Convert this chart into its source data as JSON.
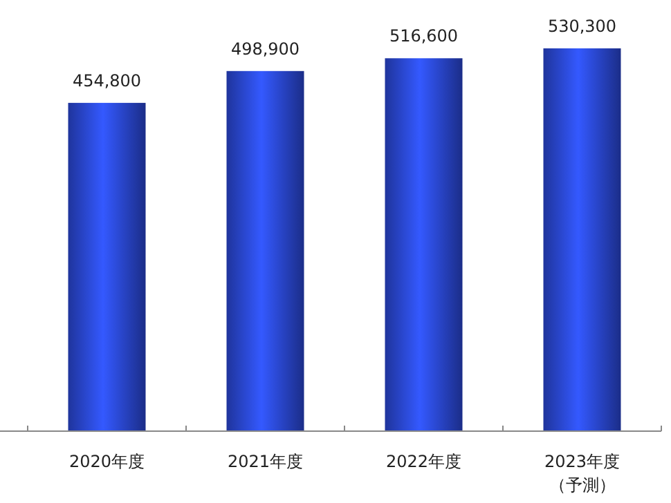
{
  "chart_data": {
    "type": "bar",
    "categories": [
      "2020年度",
      "2021年度",
      "2022年度",
      "2023年度（予測）"
    ],
    "values": [
      454800,
      498900,
      516600,
      530300
    ],
    "value_labels": [
      "454,800",
      "498,900",
      "516,600",
      "530,300"
    ],
    "color": "#2f50f0"
  }
}
